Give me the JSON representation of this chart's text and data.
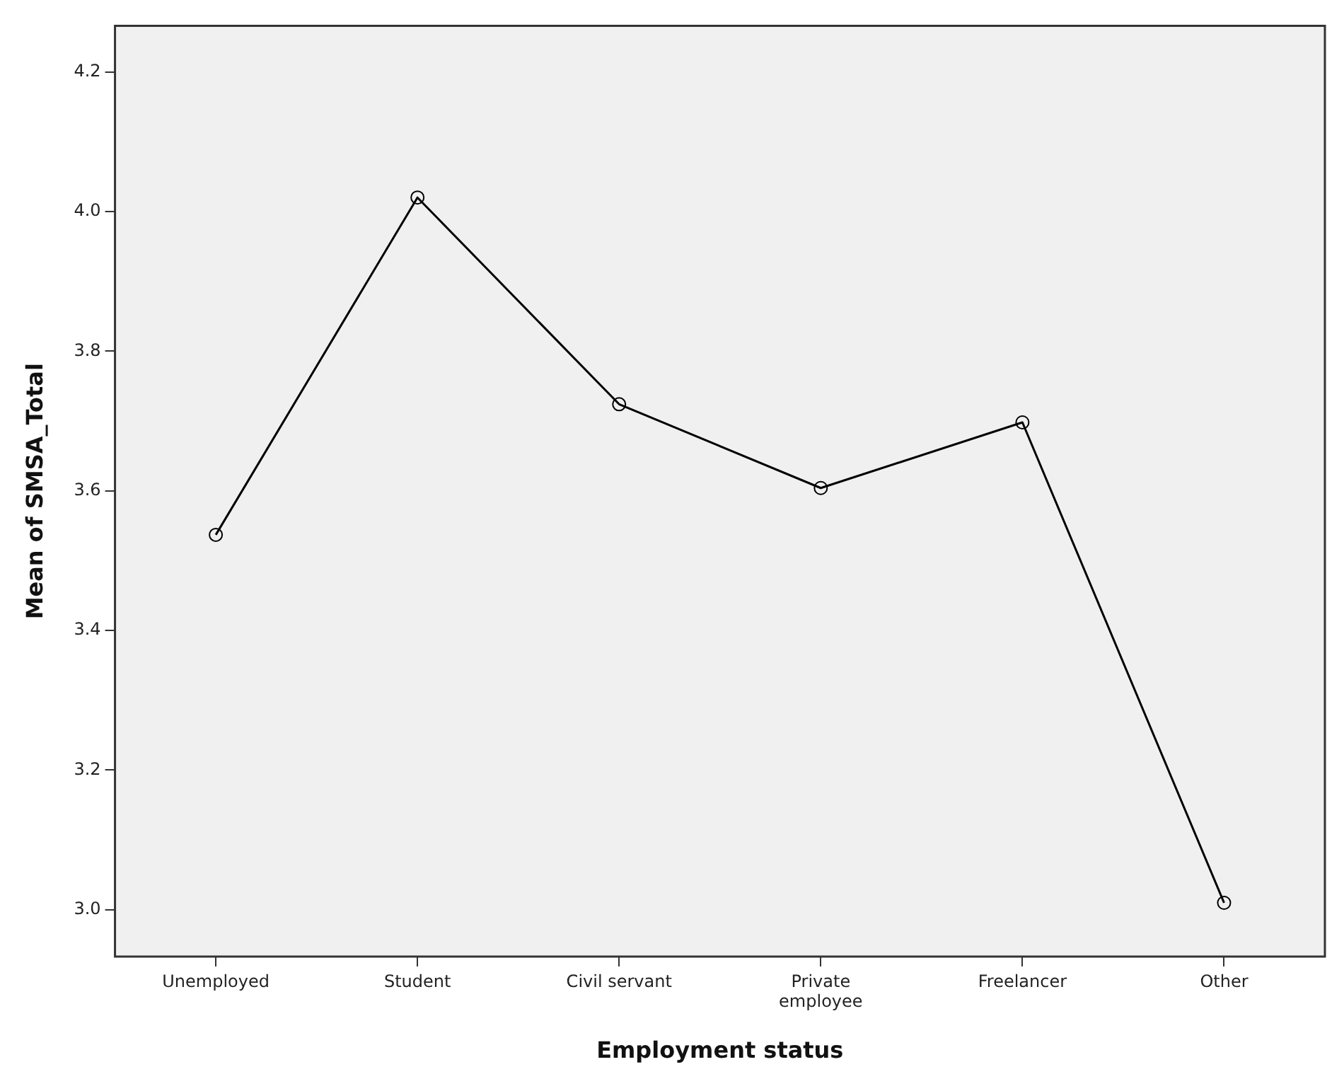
{
  "chart_data": {
    "type": "line",
    "xlabel": "Employment status",
    "ylabel": "Mean of SMSA_Total",
    "categories": [
      "Unemployed",
      "Student",
      "Civil servant",
      "Private employee",
      "Freelancer",
      "Other"
    ],
    "series": [
      {
        "color": "#000000",
        "values": [
          3.537,
          4.02,
          3.724,
          3.604,
          3.698,
          3.01
        ]
      }
    ],
    "ylim": [
      2.933,
      4.266
    ],
    "yticks": [
      {
        "value": 3,
        "label": "3.0"
      },
      3.2,
      3.4,
      3.6,
      3.8,
      {
        "value": 4,
        "label": "4.0"
      },
      4.2
    ],
    "grid": false,
    "legend": false,
    "marker": "circle",
    "line_style": "solid"
  }
}
